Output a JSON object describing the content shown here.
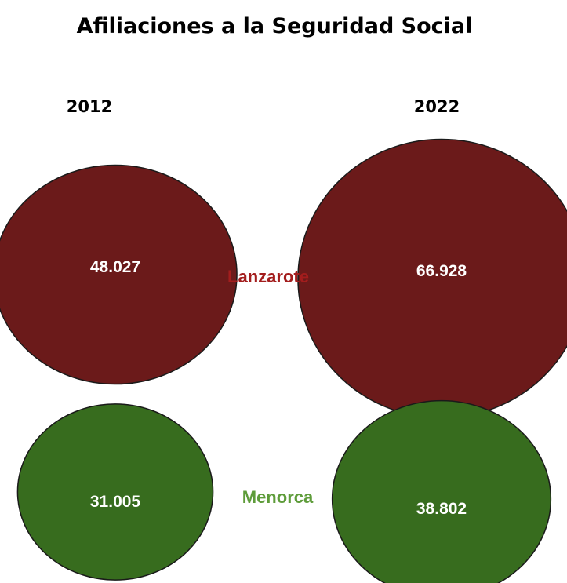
{
  "chart_data": {
    "type": "bubble",
    "title": "Afiliaciones a la Seguridad Social",
    "categories": [
      "2012",
      "2022"
    ],
    "series": [
      {
        "name": "Lanzarote",
        "values": [
          48027,
          66928
        ],
        "labels": [
          "48.027",
          "66.928"
        ],
        "color": "#6b1a1a",
        "label_color": "#a31d1d"
      },
      {
        "name": "Menorca",
        "values": [
          31005,
          38802
        ],
        "labels": [
          "31.005",
          "38.802"
        ],
        "color": "#376c1e",
        "label_color": "#5e9c3a"
      }
    ]
  }
}
